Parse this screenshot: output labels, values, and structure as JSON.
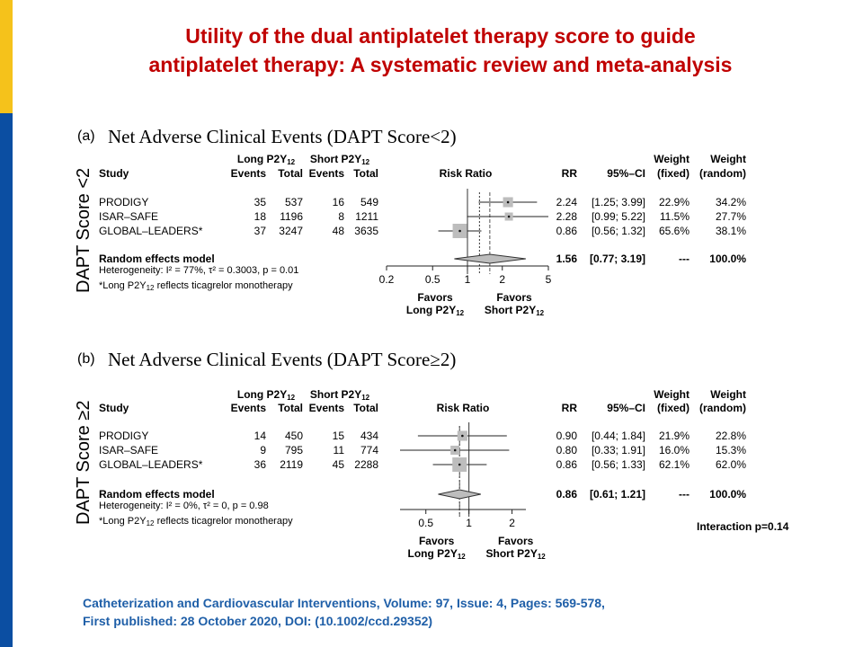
{
  "slide": {
    "title_line1": "Utility of the dual antiplatelet therapy score to guide",
    "title_line2": "antiplatelet therapy: A systematic review and meta-analysis",
    "citation_line1": "Catheterization and Cardiovascular Interventions, Volume: 97, Issue: 4, Pages: 569-578,",
    "citation_line2": "First published: 28 October 2020, DOI: (10.1002/ccd.29352)",
    "accent_yellow": "#f5c21b",
    "accent_blue": "#0b4ea2",
    "title_color": "#c00000",
    "citation_color": "#1f5fa8"
  },
  "chart_data": [
    {
      "type": "forest",
      "letter": "(a)",
      "title": "Net Adverse Clinical Events (DAPT Score<2)",
      "side_label": "DAPT Score <2",
      "headers": {
        "study": "Study",
        "group_long": "Long P2Y12",
        "group_short": "Short P2Y12",
        "events": "Events",
        "total": "Total",
        "risk_ratio": "Risk Ratio",
        "rr": "RR",
        "ci": "95%–CI",
        "weight": "Weight",
        "fixed": "(fixed)",
        "random": "(random)"
      },
      "studies": [
        {
          "name": "PRODIGY",
          "long_events": "35",
          "long_total": "537",
          "short_events": "16",
          "short_total": "549",
          "rr": 2.24,
          "lo": 1.25,
          "hi": 3.99,
          "rr_text": "2.24",
          "ci_text": "[1.25; 3.99]",
          "w_fixed": "22.9%",
          "w_random": "34.2%"
        },
        {
          "name": "ISAR–SAFE",
          "long_events": "18",
          "long_total": "1196",
          "short_events": "8",
          "short_total": "1211",
          "rr": 2.28,
          "lo": 0.99,
          "hi": 5.22,
          "rr_text": "2.28",
          "ci_text": "[0.99; 5.22]",
          "w_fixed": "11.5%",
          "w_random": "27.7%"
        },
        {
          "name": "GLOBAL–LEADERS*",
          "long_events": "37",
          "long_total": "3247",
          "short_events": "48",
          "short_total": "3635",
          "rr": 0.86,
          "lo": 0.56,
          "hi": 1.32,
          "rr_text": "0.86",
          "ci_text": "[0.56; 1.32]",
          "w_fixed": "65.6%",
          "w_random": "38.1%"
        }
      ],
      "summary": {
        "label": "Random effects model",
        "rr": 1.56,
        "lo": 0.77,
        "hi": 3.19,
        "rr_text": "1.56",
        "ci_text": "[0.77; 3.19]",
        "w_fixed": "---",
        "w_random": "100.0%"
      },
      "heterogeneity": "Heterogeneity: I² = 77%, τ² = 0.3003, p = 0.01",
      "footnote": "*Long P2Y12 reflects ticagrelor monotherapy",
      "x_scale": "log",
      "xlim": [
        0.2,
        5
      ],
      "x_ticks": [
        0.2,
        0.5,
        1,
        2,
        5
      ],
      "x_tick_labels": [
        "0.2",
        "0.5",
        "1",
        "2",
        "5"
      ],
      "fixed_effect_line": 1.27,
      "favors_left": [
        "Favors",
        "Long P2Y12"
      ],
      "favors_right": [
        "Favors",
        "Short P2Y12"
      ],
      "interaction": ""
    },
    {
      "type": "forest",
      "letter": "(b)",
      "title": "Net Adverse Clinical Events (DAPT Score≥2)",
      "side_label": "DAPT Score ≥2",
      "headers": {
        "study": "Study",
        "group_long": "Long P2Y12",
        "group_short": "Short P2Y12",
        "events": "Events",
        "total": "Total",
        "risk_ratio": "Risk Ratio",
        "rr": "RR",
        "ci": "95%–CI",
        "weight": "Weight",
        "fixed": "(fixed)",
        "random": "(random)"
      },
      "studies": [
        {
          "name": "PRODIGY",
          "long_events": "14",
          "long_total": "450",
          "short_events": "15",
          "short_total": "434",
          "rr": 0.9,
          "lo": 0.44,
          "hi": 1.84,
          "rr_text": "0.90",
          "ci_text": "[0.44; 1.84]",
          "w_fixed": "21.9%",
          "w_random": "22.8%"
        },
        {
          "name": "ISAR–SAFE",
          "long_events": "9",
          "long_total": "795",
          "short_events": "11",
          "short_total": "774",
          "rr": 0.8,
          "lo": 0.33,
          "hi": 1.91,
          "rr_text": "0.80",
          "ci_text": "[0.33; 1.91]",
          "w_fixed": "16.0%",
          "w_random": "15.3%"
        },
        {
          "name": "GLOBAL–LEADERS*",
          "long_events": "36",
          "long_total": "2119",
          "short_events": "45",
          "short_total": "2288",
          "rr": 0.86,
          "lo": 0.56,
          "hi": 1.33,
          "rr_text": "0.86",
          "ci_text": "[0.56; 1.33]",
          "w_fixed": "62.1%",
          "w_random": "62.0%"
        }
      ],
      "summary": {
        "label": "Random effects model",
        "rr": 0.86,
        "lo": 0.61,
        "hi": 1.21,
        "rr_text": "0.86",
        "ci_text": "[0.61; 1.21]",
        "w_fixed": "---",
        "w_random": "100.0%"
      },
      "heterogeneity": "Heterogeneity: I² = 0%, τ² = 0, p = 0.98",
      "footnote": "*Long P2Y12 reflects ticagrelor monotherapy",
      "x_scale": "log",
      "xlim": [
        0.33,
        2.5
      ],
      "x_ticks": [
        0.5,
        1,
        2
      ],
      "x_tick_labels": [
        "0.5",
        "1",
        "2"
      ],
      "fixed_effect_line": 0.86,
      "favors_left": [
        "Favors",
        "Long P2Y12"
      ],
      "favors_right": [
        "Favors",
        "Short P2Y12"
      ],
      "interaction": "Interaction p=0.14"
    }
  ]
}
